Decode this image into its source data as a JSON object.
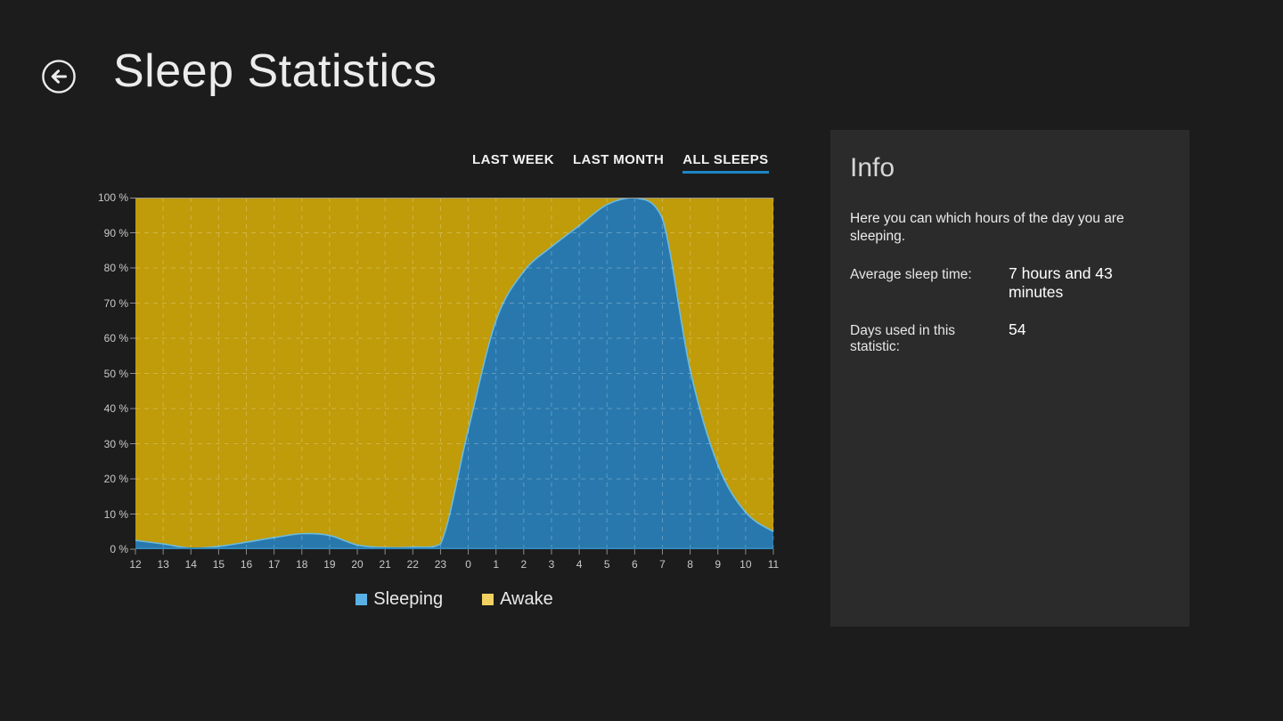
{
  "header": {
    "title": "Sleep Statistics"
  },
  "tabs": [
    {
      "label": "LAST WEEK",
      "active": false
    },
    {
      "label": "LAST MONTH",
      "active": false
    },
    {
      "label": "ALL SLEEPS",
      "active": true
    }
  ],
  "colors": {
    "accent_underline": "#1e87c4",
    "sleeping_fill": "#2878ad",
    "sleeping_stroke": "#6cbbde",
    "awake_fill": "#c09b0a",
    "legend_sleeping": "#5ab1e6",
    "legend_awake": "#f1d161",
    "grid_line": "rgba(255,255,255,0.25)",
    "top_border": "#979797",
    "bottom_axis": "#3187ba",
    "tick": "#8a8a8a"
  },
  "chart_data": {
    "type": "area",
    "stacked": true,
    "title": "",
    "xlabel": "",
    "ylabel": "",
    "ylim": [
      0,
      100
    ],
    "grid": "dashed",
    "legend_position": "bottom",
    "x_labels": [
      "12",
      "13",
      "14",
      "15",
      "16",
      "17",
      "18",
      "19",
      "20",
      "21",
      "22",
      "23",
      "0",
      "1",
      "2",
      "3",
      "4",
      "5",
      "6",
      "7",
      "8",
      "9",
      "10",
      "11"
    ],
    "y_tick_labels": [
      "0 %",
      "10 %",
      "20 %",
      "30 %",
      "40 %",
      "50 %",
      "60 %",
      "70 %",
      "80 %",
      "90 %",
      "100 %"
    ],
    "series": [
      {
        "name": "Sleeping",
        "values": [
          2.5,
          1.5,
          0.3,
          0.8,
          2,
          3.3,
          4.4,
          3.9,
          1.2,
          0.5,
          0.6,
          1.5,
          34,
          65,
          79,
          86,
          92,
          98,
          100,
          94,
          51,
          24,
          10.5,
          5
        ]
      },
      {
        "name": "Awake",
        "values": [
          97.5,
          98.5,
          99.7,
          99.2,
          98,
          96.7,
          95.6,
          96.1,
          98.8,
          99.5,
          99.4,
          98.5,
          66,
          35,
          21,
          14,
          8,
          2,
          0,
          6,
          49,
          76,
          89.5,
          95
        ]
      }
    ]
  },
  "info": {
    "title": "Info",
    "description": "Here you can which hours of the day you are sleeping.",
    "rows": [
      {
        "label": "Average sleep time:",
        "value": "7 hours and 43 minutes"
      },
      {
        "label": "Days used in this statistic:",
        "value": "54"
      }
    ]
  }
}
